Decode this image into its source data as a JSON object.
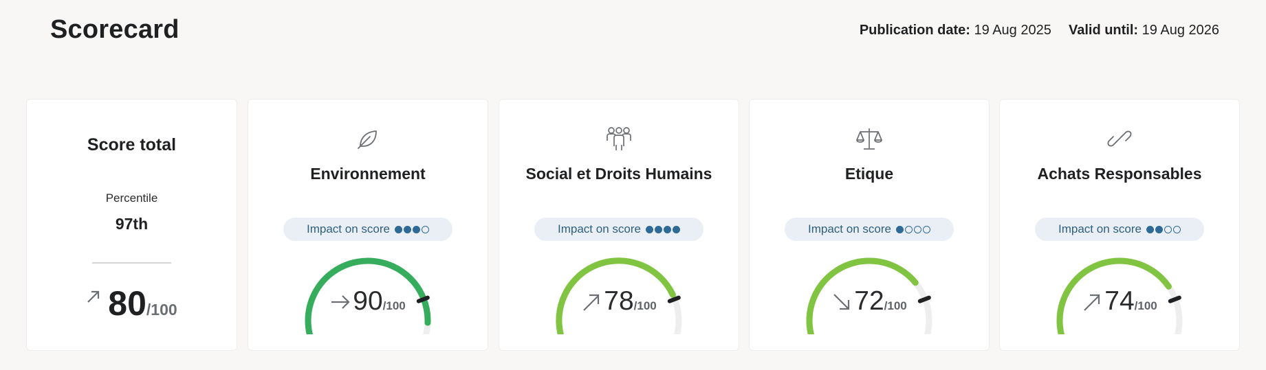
{
  "header": {
    "title": "Scorecard",
    "publication_label": "Publication date:",
    "publication_value": "19 Aug 2025",
    "valid_label": "Valid until:",
    "valid_value": "19 Aug 2026"
  },
  "total": {
    "title": "Score total",
    "percentile_label": "Percentile",
    "percentile_value": "97th",
    "score": "80",
    "out_of": "/100",
    "trend": "up"
  },
  "impact_label": "Impact on score",
  "colors": {
    "gauge_track": "#eeeeee",
    "gauge_dark_green": "#36ad5c",
    "gauge_light_green": "#80c442",
    "marker": "#1f2022",
    "impact_dot": "#2e6a96"
  },
  "categories": [
    {
      "title": "Environnement",
      "icon": "leaf-icon",
      "score": "90",
      "value": 90,
      "out_of": "/100",
      "trend": "flat",
      "impact": 3,
      "impact_max": 4,
      "color": "#36ad5c",
      "benchmark": 80
    },
    {
      "title": "Social et Droits Humains",
      "icon": "people-icon",
      "score": "78",
      "value": 78,
      "out_of": "/100",
      "trend": "up",
      "impact": 4,
      "impact_max": 4,
      "color": "#80c442",
      "benchmark": 80
    },
    {
      "title": "Etique",
      "icon": "scales-icon",
      "score": "72",
      "value": 72,
      "out_of": "/100",
      "trend": "down",
      "impact": 1,
      "impact_max": 4,
      "color": "#80c442",
      "benchmark": 80
    },
    {
      "title": "Achats Responsables",
      "icon": "link-icon",
      "score": "74",
      "value": 74,
      "out_of": "/100",
      "trend": "up",
      "impact": 2,
      "impact_max": 4,
      "color": "#80c442",
      "benchmark": 80
    }
  ]
}
